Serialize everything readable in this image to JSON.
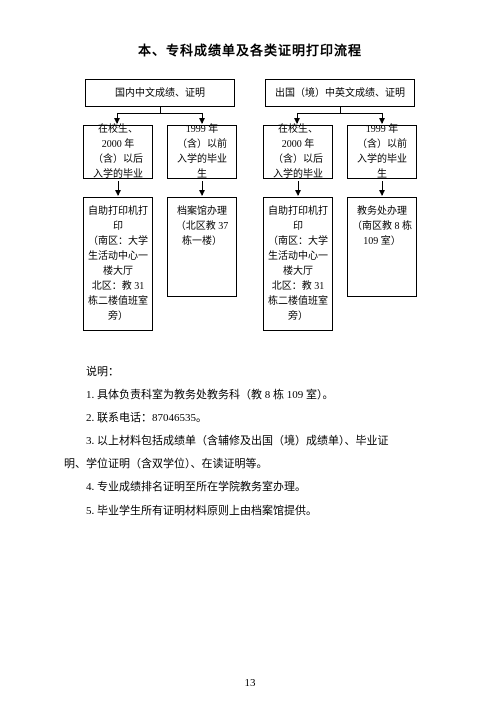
{
  "title": "本、专科成绩单及各类证明打印流程",
  "flow": {
    "left": {
      "top": "国内中文成绩、证明",
      "branches": [
        {
          "mid": "在校生、2000 年（含）以后入学的毕业",
          "bot": "自助打印机打印\n（南区：大学生活动中心一楼大厅\n北区：教 31 栋二楼值班室旁）"
        },
        {
          "mid": "1999 年（含）以前入学的毕业生",
          "bot": "档案馆办理\n（北区教 37 栋一楼）"
        }
      ]
    },
    "right": {
      "top": "出国（境）中英文成绩、证明",
      "branches": [
        {
          "mid": "在校生、2000 年（含）以后入学的毕业",
          "bot": "自助打印机打印\n（南区：大学生活动中心一楼大厅\n北区：教 31 栋二楼值班室旁）"
        },
        {
          "mid": "1999 年（含）以前入学的毕业生",
          "bot": "教务处办理\n（南区教 8 栋 109 室）"
        }
      ]
    }
  },
  "notes": {
    "heading": "说明：",
    "items": [
      "1. 具体负责科室为教务处教务科（教 8 栋 109 室）。",
      "2. 联系电话：87046535。",
      "3. 以上材料包括成绩单（含辅修及出国（境）成绩单）、毕业证",
      "明、学位证明（含双学位）、在读证明等。",
      "4. 专业成绩排名证明至所在学院教务室办理。",
      "5. 毕业学生所有证明材料原则上由档案馆提供。"
    ]
  },
  "page_number": "13",
  "style": {
    "bg": "#ffffff",
    "text_color": "#000000",
    "border_color": "#000000",
    "title_fontsize": 13,
    "body_fontsize": 11,
    "box_fontsize": 10
  }
}
